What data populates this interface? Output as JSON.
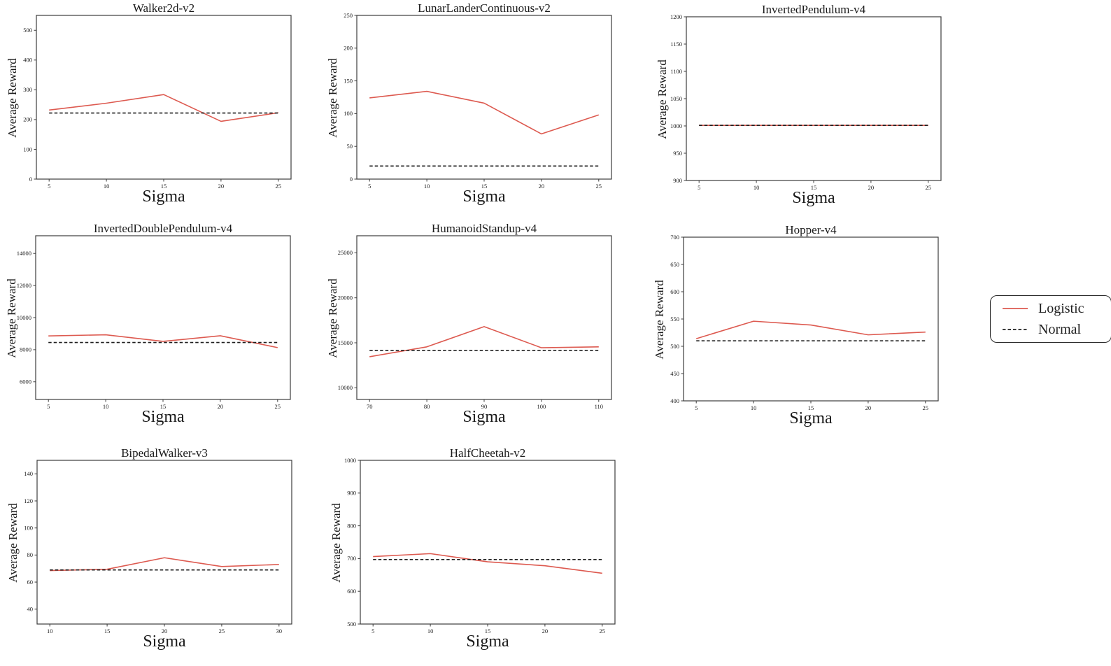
{
  "page": {
    "background": "#ffffff"
  },
  "legend": {
    "items": [
      {
        "label": "Logistic",
        "color": "#dd5a50",
        "style": "solid"
      },
      {
        "label": "Normal",
        "color": "#1f1f1f",
        "style": "dashed"
      }
    ]
  },
  "chart_data": [
    {
      "type": "line",
      "title": "Walker2d-v2",
      "xlabel": "Sigma",
      "ylabel": "Average Reward",
      "x": [
        5,
        10,
        15,
        20,
        25
      ],
      "xticks": [
        5,
        10,
        15,
        20,
        25
      ],
      "yticks": [
        0,
        100,
        200,
        300,
        400,
        500
      ],
      "ylim": [
        0,
        550
      ],
      "grid": false,
      "legend_position": "none",
      "series": [
        {
          "name": "Logistic",
          "color": "#dd5a50",
          "style": "solid",
          "values": [
            232,
            255,
            284,
            194,
            223
          ]
        },
        {
          "name": "Normal",
          "color": "#1f1f1f",
          "style": "dashed",
          "values": [
            222,
            222,
            222,
            222,
            222
          ]
        }
      ]
    },
    {
      "type": "line",
      "title": "LunarLanderContinuous-v2",
      "xlabel": "Sigma",
      "ylabel": "Average Reward",
      "x": [
        5,
        10,
        15,
        20,
        25
      ],
      "xticks": [
        5,
        10,
        15,
        20,
        25
      ],
      "yticks": [
        0,
        50,
        100,
        150,
        200,
        250
      ],
      "ylim": [
        0,
        250
      ],
      "grid": false,
      "legend_position": "none",
      "series": [
        {
          "name": "Logistic",
          "color": "#dd5a50",
          "style": "solid",
          "values": [
            124,
            134,
            116,
            69,
            98
          ]
        },
        {
          "name": "Normal",
          "color": "#1f1f1f",
          "style": "dashed",
          "values": [
            20,
            20,
            20,
            20,
            20
          ]
        }
      ]
    },
    {
      "type": "line",
      "title": "InvertedPendulum-v4",
      "xlabel": "Sigma",
      "ylabel": "Average Reward",
      "x": [
        5,
        10,
        15,
        20,
        25
      ],
      "xticks": [
        5,
        10,
        15,
        20,
        25
      ],
      "yticks": [
        900,
        950,
        1000,
        1050,
        1100,
        1150,
        1200
      ],
      "ylim": [
        900,
        1200
      ],
      "grid": false,
      "legend_position": "none",
      "series": [
        {
          "name": "Logistic",
          "color": "#dd5a50",
          "style": "solid",
          "values": [
            1001,
            1001,
            1001,
            1001,
            1001
          ]
        },
        {
          "name": "Normal",
          "color": "#1f1f1f",
          "style": "dashed",
          "values": [
            1001,
            1001,
            1001,
            1001,
            1001
          ]
        }
      ]
    },
    {
      "type": "line",
      "title": "InvertedDoublePendulum-v4",
      "xlabel": "Sigma",
      "ylabel": "Average Reward",
      "x": [
        5,
        10,
        15,
        20,
        25
      ],
      "xticks": [
        5,
        10,
        15,
        20,
        25
      ],
      "yticks": [
        6000,
        8000,
        10000,
        12000,
        14000
      ],
      "ylim": [
        4900,
        15100
      ],
      "grid": false,
      "legend_position": "none",
      "series": [
        {
          "name": "Logistic",
          "color": "#dd5a50",
          "style": "solid",
          "values": [
            8860,
            8930,
            8520,
            8870,
            8130
          ]
        },
        {
          "name": "Normal",
          "color": "#1f1f1f",
          "style": "dashed",
          "values": [
            8450,
            8450,
            8450,
            8450,
            8450
          ]
        }
      ]
    },
    {
      "type": "line",
      "title": "HumanoidStandup-v4",
      "xlabel": "Sigma",
      "ylabel": "Average Reward",
      "x": [
        70,
        80,
        90,
        100,
        110
      ],
      "xticks": [
        70,
        80,
        90,
        100,
        110
      ],
      "yticks": [
        10000,
        15000,
        20000,
        25000
      ],
      "ylim": [
        8700,
        26900
      ],
      "grid": false,
      "legend_position": "none",
      "series": [
        {
          "name": "Logistic",
          "color": "#dd5a50",
          "style": "solid",
          "values": [
            13450,
            14550,
            16800,
            14450,
            14550
          ]
        },
        {
          "name": "Normal",
          "color": "#1f1f1f",
          "style": "dashed",
          "values": [
            14150,
            14150,
            14150,
            14150,
            14150
          ]
        }
      ]
    },
    {
      "type": "line",
      "title": "Hopper-v4",
      "xlabel": "Sigma",
      "ylabel": "Average Reward",
      "x": [
        5,
        10,
        15,
        20,
        25
      ],
      "xticks": [
        5,
        10,
        15,
        20,
        25
      ],
      "yticks": [
        400,
        450,
        500,
        550,
        600,
        650,
        700
      ],
      "ylim": [
        400,
        700
      ],
      "grid": false,
      "legend_position": "none",
      "series": [
        {
          "name": "Logistic",
          "color": "#dd5a50",
          "style": "solid",
          "values": [
            514,
            546,
            539,
            521,
            526
          ]
        },
        {
          "name": "Normal",
          "color": "#1f1f1f",
          "style": "dashed",
          "values": [
            510,
            510,
            510,
            510,
            510
          ]
        }
      ]
    },
    {
      "type": "line",
      "title": "BipedalWalker-v3",
      "xlabel": "Sigma",
      "ylabel": "Average Reward",
      "x": [
        10,
        15,
        20,
        25,
        30
      ],
      "xticks": [
        10,
        15,
        20,
        25,
        30
      ],
      "yticks": [
        40,
        60,
        80,
        100,
        120,
        140
      ],
      "ylim": [
        29,
        150
      ],
      "grid": false,
      "legend_position": "none",
      "series": [
        {
          "name": "Logistic",
          "color": "#dd5a50",
          "style": "solid",
          "values": [
            68.5,
            69.5,
            78,
            71.5,
            73
          ]
        },
        {
          "name": "Normal",
          "color": "#1f1f1f",
          "style": "dashed",
          "values": [
            69,
            69,
            69,
            69,
            69
          ]
        }
      ]
    },
    {
      "type": "line",
      "title": "HalfCheetah-v2",
      "xlabel": "Sigma",
      "ylabel": "Average Reward",
      "x": [
        5,
        10,
        15,
        20,
        25
      ],
      "xticks": [
        5,
        10,
        15,
        20,
        25
      ],
      "yticks": [
        500,
        600,
        700,
        800,
        900,
        1000
      ],
      "ylim": [
        500,
        1000
      ],
      "grid": false,
      "legend_position": "none",
      "series": [
        {
          "name": "Logistic",
          "color": "#dd5a50",
          "style": "solid",
          "values": [
            706,
            715,
            690,
            678,
            655
          ]
        },
        {
          "name": "Normal",
          "color": "#1f1f1f",
          "style": "dashed",
          "values": [
            697,
            697,
            697,
            697,
            697
          ]
        }
      ]
    }
  ]
}
